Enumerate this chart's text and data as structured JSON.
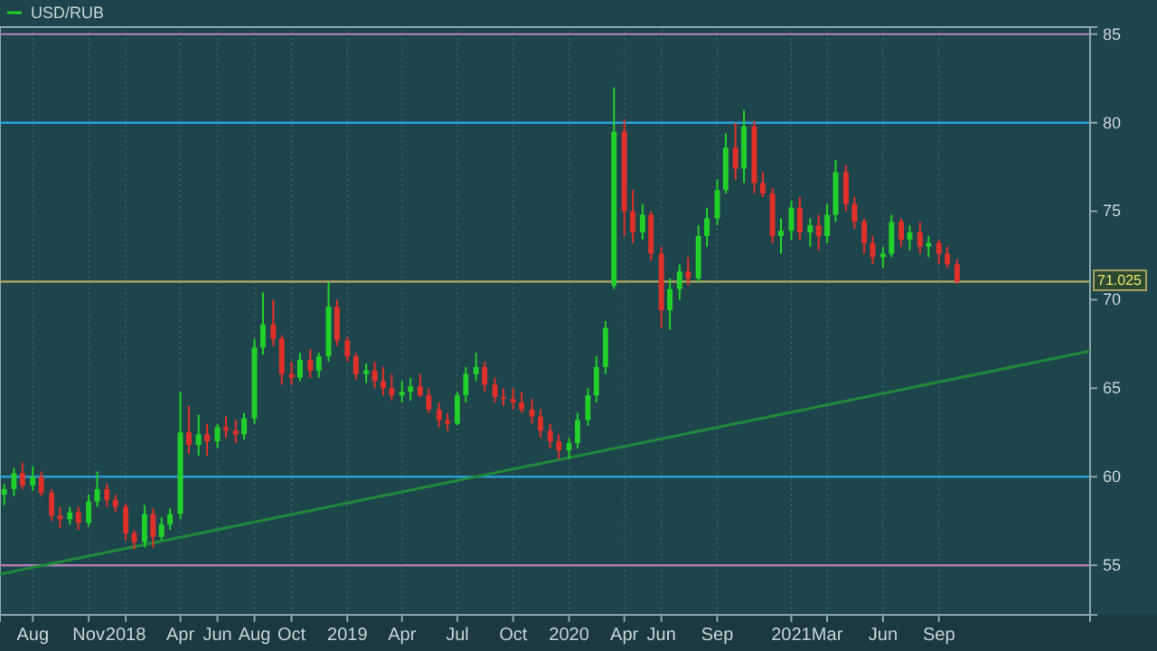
{
  "chart_data": {
    "type": "candlestick",
    "legend": "top left",
    "grid": "x",
    "xlim": [
      "2017-06-08",
      "2022-05-08"
    ],
    "ylim": [
      52.2,
      85.4
    ],
    "yticks": [
      55,
      60,
      65,
      70,
      75,
      80,
      85
    ],
    "xticks": [
      {
        "value": "2017-08-01",
        "label": "Aug"
      },
      {
        "value": "2017-11-01",
        "label": "Nov"
      },
      {
        "value": "2018-01-01",
        "label": "2018"
      },
      {
        "value": "2018-04-01",
        "label": "Apr"
      },
      {
        "value": "2018-06-01",
        "label": "Jun"
      },
      {
        "value": "2018-08-01",
        "label": "Aug"
      },
      {
        "value": "2018-10-01",
        "label": "Oct"
      },
      {
        "value": "2019-01-01",
        "label": "2019"
      },
      {
        "value": "2019-04-01",
        "label": "Apr"
      },
      {
        "value": "2019-07-01",
        "label": "Jul"
      },
      {
        "value": "2019-10-01",
        "label": "Oct"
      },
      {
        "value": "2020-01-01",
        "label": "2020"
      },
      {
        "value": "2020-04-01",
        "label": "Apr"
      },
      {
        "value": "2020-06-01",
        "label": "Jun"
      },
      {
        "value": "2020-09-01",
        "label": "Sep"
      },
      {
        "value": "2021-01-01",
        "label": "2021"
      },
      {
        "value": "2021-03-01",
        "label": "Mar"
      },
      {
        "value": "2021-06-01",
        "label": "Jun"
      },
      {
        "value": "2021-09-01",
        "label": "Sep"
      }
    ],
    "ref_lines": [
      {
        "axis": "y",
        "value": 85,
        "color": "#b07ab0"
      },
      {
        "axis": "y",
        "value": 80,
        "color": "#2a9fd6"
      },
      {
        "axis": "y",
        "value": 71.025,
        "label": "71.025",
        "color": "#a8a060"
      },
      {
        "axis": "y",
        "value": 60,
        "color": "#2a9fd6"
      },
      {
        "axis": "y",
        "value": 55,
        "color": "#b07ab0"
      }
    ],
    "series": [
      {
        "type": "candlestick",
        "name": "USD/RUB",
        "colors": [
          "#22d02a",
          "#22d02a",
          "#e0302a",
          "#22d02a",
          "#e0302a",
          "#e0302a",
          "#e0302a",
          "#22d02a",
          "#e0302a",
          "#22d02a",
          "#22d02a",
          "#e0302a",
          "#e0302a",
          "#e0302a",
          "#e0302a",
          "#22d02a",
          "#e0302a",
          "#22d02a",
          "#22d02a",
          "#22d02a",
          "#e0302a",
          "#22d02a",
          "#e0302a",
          "#22d02a",
          "#e0302a",
          "#e0302a",
          "#22d02a",
          "#22d02a",
          "#22d02a",
          "#e0302a",
          "#e0302a",
          "#e0302a",
          "#22d02a",
          "#e0302a",
          "#22d02a",
          "#22d02a",
          "#e0302a",
          "#e0302a",
          "#e0302a",
          "#22d02a",
          "#e0302a",
          "#e0302a",
          "#e0302a",
          "#22d02a",
          "#22d02a",
          "#e0302a",
          "#e0302a",
          "#e0302a",
          "#e0302a",
          "#22d02a",
          "#22d02a",
          "#22d02a",
          "#e0302a",
          "#e0302a",
          "#e0302a",
          "#e0302a",
          "#e0302a",
          "#e0302a",
          "#e0302a",
          "#e0302a",
          "#e0302a",
          "#22d02a",
          "#22d02a",
          "#22d02a",
          "#22d02a",
          "#22d02a",
          "#22d02a",
          "#e0302a",
          "#e0302a",
          "#22d02a",
          "#e0302a",
          "#e0302a",
          "#22d02a",
          "#22d02a",
          "#e0302a",
          "#22d02a",
          "#22d02a",
          "#22d02a",
          "#22d02a",
          "#e0302a",
          "#22d02a",
          "#e0302a",
          "#e0302a",
          "#e0302a",
          "#22d02a",
          "#22d02a",
          "#e0302a",
          "#22d02a",
          "#e0302a",
          "#22d02a",
          "#22d02a",
          "#e0302a",
          "#e0302a",
          "#e0302a",
          "#e0302a",
          "#22d02a",
          "#22d02a",
          "#e0302a",
          "#22d02a",
          "#e0302a",
          "#22d02a",
          "#e0302a",
          "#e0302a",
          "#e0302a"
        ],
        "x": [
          "2017-06-15",
          "2017-07-01",
          "2017-07-15",
          "2017-08-01",
          "2017-08-15",
          "2017-09-01",
          "2017-09-15",
          "2017-10-01",
          "2017-10-15",
          "2017-11-01",
          "2017-11-15",
          "2017-12-01",
          "2017-12-15",
          "2018-01-01",
          "2018-01-15",
          "2018-02-01",
          "2018-02-15",
          "2018-03-01",
          "2018-03-15",
          "2018-04-01",
          "2018-04-15",
          "2018-05-01",
          "2018-05-15",
          "2018-06-01",
          "2018-06-15",
          "2018-07-01",
          "2018-07-15",
          "2018-08-01",
          "2018-08-15",
          "2018-09-01",
          "2018-09-15",
          "2018-10-01",
          "2018-10-15",
          "2018-11-01",
          "2018-11-15",
          "2018-12-01",
          "2018-12-15",
          "2019-01-01",
          "2019-01-15",
          "2019-02-01",
          "2019-02-15",
          "2019-03-01",
          "2019-03-15",
          "2019-04-01",
          "2019-04-15",
          "2019-05-01",
          "2019-05-15",
          "2019-06-01",
          "2019-06-15",
          "2019-07-01",
          "2019-07-15",
          "2019-08-01",
          "2019-08-15",
          "2019-09-01",
          "2019-09-15",
          "2019-10-01",
          "2019-10-15",
          "2019-11-01",
          "2019-11-15",
          "2019-12-01",
          "2019-12-15",
          "2020-01-01",
          "2020-01-15",
          "2020-02-01",
          "2020-02-15",
          "2020-03-01",
          "2020-03-15",
          "2020-04-01",
          "2020-04-15",
          "2020-05-01",
          "2020-05-15",
          "2020-06-01",
          "2020-06-15",
          "2020-07-01",
          "2020-07-15",
          "2020-08-01",
          "2020-08-15",
          "2020-09-01",
          "2020-09-15",
          "2020-10-01",
          "2020-10-15",
          "2020-11-01",
          "2020-11-15",
          "2020-12-01",
          "2020-12-15",
          "2021-01-01",
          "2021-01-15",
          "2021-02-01",
          "2021-02-15",
          "2021-03-01",
          "2021-03-15",
          "2021-04-01",
          "2021-04-15",
          "2021-05-01",
          "2021-05-15",
          "2021-06-01",
          "2021-06-15",
          "2021-07-01",
          "2021-07-15",
          "2021-08-01",
          "2021-08-15",
          "2021-09-01",
          "2021-09-15",
          "2021-10-01"
        ],
        "ohlc": [
          [
            59.0,
            59.6,
            58.4,
            59.3
          ],
          [
            59.3,
            60.5,
            58.9,
            60.2
          ],
          [
            60.2,
            60.8,
            59.3,
            59.5
          ],
          [
            59.5,
            60.6,
            59.2,
            60.0
          ],
          [
            60.0,
            60.3,
            58.9,
            59.1
          ],
          [
            59.1,
            59.3,
            57.5,
            57.8
          ],
          [
            57.8,
            58.3,
            57.1,
            57.6
          ],
          [
            57.6,
            58.3,
            57.3,
            58.0
          ],
          [
            58.0,
            58.3,
            57.0,
            57.4
          ],
          [
            57.4,
            59.0,
            57.2,
            58.6
          ],
          [
            58.6,
            60.3,
            58.3,
            59.3
          ],
          [
            59.3,
            59.6,
            58.3,
            58.7
          ],
          [
            58.7,
            59.0,
            58.0,
            58.3
          ],
          [
            58.3,
            58.5,
            56.4,
            56.8
          ],
          [
            56.8,
            57.0,
            55.9,
            56.3
          ],
          [
            56.3,
            58.4,
            56.0,
            57.9
          ],
          [
            57.9,
            58.2,
            56.0,
            56.6
          ],
          [
            56.6,
            57.7,
            56.4,
            57.3
          ],
          [
            57.3,
            58.2,
            57.0,
            57.9
          ],
          [
            57.9,
            64.8,
            57.6,
            62.5
          ],
          [
            62.5,
            64.0,
            61.3,
            61.8
          ],
          [
            61.8,
            63.5,
            61.2,
            62.4
          ],
          [
            62.4,
            63.0,
            61.2,
            62.0
          ],
          [
            62.0,
            63.0,
            61.6,
            62.8
          ],
          [
            62.8,
            63.4,
            62.2,
            62.6
          ],
          [
            62.6,
            63.2,
            61.9,
            62.4
          ],
          [
            62.4,
            63.6,
            62.1,
            63.3
          ],
          [
            63.3,
            67.8,
            63.0,
            67.3
          ],
          [
            67.3,
            70.4,
            66.9,
            68.6
          ],
          [
            68.6,
            70.0,
            67.4,
            67.8
          ],
          [
            67.8,
            68.0,
            65.2,
            65.8
          ],
          [
            65.8,
            66.5,
            65.2,
            65.6
          ],
          [
            65.6,
            67.0,
            65.4,
            66.6
          ],
          [
            66.6,
            67.2,
            65.6,
            66.0
          ],
          [
            66.0,
            67.0,
            65.6,
            66.8
          ],
          [
            66.8,
            71.0,
            66.5,
            69.6
          ],
          [
            69.6,
            70.0,
            67.4,
            67.7
          ],
          [
            67.7,
            67.9,
            66.5,
            66.8
          ],
          [
            66.8,
            67.0,
            65.5,
            65.8
          ],
          [
            65.8,
            66.4,
            65.3,
            66.0
          ],
          [
            66.0,
            66.5,
            65.0,
            65.4
          ],
          [
            65.4,
            66.2,
            64.6,
            65.0
          ],
          [
            65.0,
            65.8,
            64.3,
            64.6
          ],
          [
            64.6,
            65.4,
            64.2,
            64.8
          ],
          [
            64.8,
            65.6,
            64.3,
            65.1
          ],
          [
            65.1,
            65.8,
            64.5,
            64.6
          ],
          [
            64.6,
            65.0,
            63.6,
            63.8
          ],
          [
            63.8,
            64.2,
            62.8,
            63.2
          ],
          [
            63.2,
            63.6,
            62.6,
            63.0
          ],
          [
            63.0,
            64.8,
            62.9,
            64.6
          ],
          [
            64.6,
            66.2,
            64.2,
            65.8
          ],
          [
            65.8,
            67.0,
            65.4,
            66.2
          ],
          [
            66.2,
            66.5,
            64.8,
            65.2
          ],
          [
            65.2,
            65.6,
            64.2,
            64.5
          ],
          [
            64.5,
            65.0,
            64.0,
            64.4
          ],
          [
            64.4,
            65.0,
            63.8,
            64.2
          ],
          [
            64.2,
            64.8,
            63.6,
            63.8
          ],
          [
            63.8,
            64.4,
            63.0,
            63.4
          ],
          [
            63.4,
            63.8,
            62.2,
            62.6
          ],
          [
            62.6,
            63.0,
            61.6,
            62.0
          ],
          [
            62.0,
            62.4,
            61.0,
            61.5
          ],
          [
            61.5,
            62.2,
            61.0,
            61.9
          ],
          [
            61.9,
            63.6,
            61.6,
            63.2
          ],
          [
            63.2,
            65.0,
            62.9,
            64.6
          ],
          [
            64.6,
            66.8,
            64.2,
            66.2
          ],
          [
            66.2,
            68.8,
            65.8,
            68.4
          ],
          [
            70.8,
            82.0,
            70.6,
            79.5
          ],
          [
            79.5,
            80.2,
            73.6,
            75.0
          ],
          [
            75.0,
            76.2,
            73.2,
            73.8
          ],
          [
            73.8,
            75.4,
            73.4,
            74.8
          ],
          [
            74.8,
            75.0,
            72.2,
            72.6
          ],
          [
            72.6,
            73.0,
            68.4,
            69.4
          ],
          [
            69.4,
            71.2,
            68.3,
            70.6
          ],
          [
            70.6,
            72.0,
            70.0,
            71.6
          ],
          [
            71.6,
            72.4,
            70.8,
            71.2
          ],
          [
            71.2,
            74.2,
            71.0,
            73.6
          ],
          [
            73.6,
            75.2,
            73.0,
            74.6
          ],
          [
            74.6,
            76.8,
            74.2,
            76.2
          ],
          [
            76.2,
            79.4,
            76.0,
            78.6
          ],
          [
            78.6,
            80.0,
            76.8,
            77.4
          ],
          [
            77.4,
            80.7,
            76.6,
            79.8
          ],
          [
            79.8,
            80.1,
            76.0,
            76.6
          ],
          [
            76.6,
            77.2,
            75.8,
            76.0
          ],
          [
            76.0,
            76.3,
            73.2,
            73.6
          ],
          [
            73.6,
            74.6,
            72.6,
            73.9
          ],
          [
            73.9,
            75.6,
            73.4,
            75.2
          ],
          [
            75.2,
            75.8,
            73.4,
            73.8
          ],
          [
            73.8,
            74.6,
            73.0,
            74.2
          ],
          [
            74.2,
            74.8,
            72.8,
            73.6
          ],
          [
            73.6,
            75.4,
            73.2,
            74.8
          ],
          [
            74.8,
            77.9,
            74.4,
            77.2
          ],
          [
            77.2,
            77.6,
            75.0,
            75.4
          ],
          [
            75.4,
            75.8,
            74.0,
            74.4
          ],
          [
            74.4,
            74.6,
            72.6,
            73.2
          ],
          [
            73.2,
            73.6,
            72.0,
            72.4
          ],
          [
            72.4,
            73.0,
            71.8,
            72.6
          ],
          [
            72.6,
            74.8,
            72.4,
            74.4
          ],
          [
            74.4,
            74.6,
            73.0,
            73.4
          ],
          [
            73.4,
            74.2,
            72.8,
            73.8
          ],
          [
            73.8,
            74.4,
            72.6,
            73.0
          ],
          [
            73.0,
            73.6,
            72.4,
            73.2
          ],
          [
            73.2,
            73.4,
            72.0,
            72.6
          ],
          [
            72.6,
            73.0,
            71.8,
            72.0
          ],
          [
            72.0,
            72.3,
            70.9,
            71.025
          ]
        ]
      },
      {
        "type": "line",
        "color": "#1f8a3c",
        "x": [
          "2017-06-08",
          "2022-05-08"
        ],
        "values": [
          54.5,
          67.1
        ]
      }
    ]
  }
}
